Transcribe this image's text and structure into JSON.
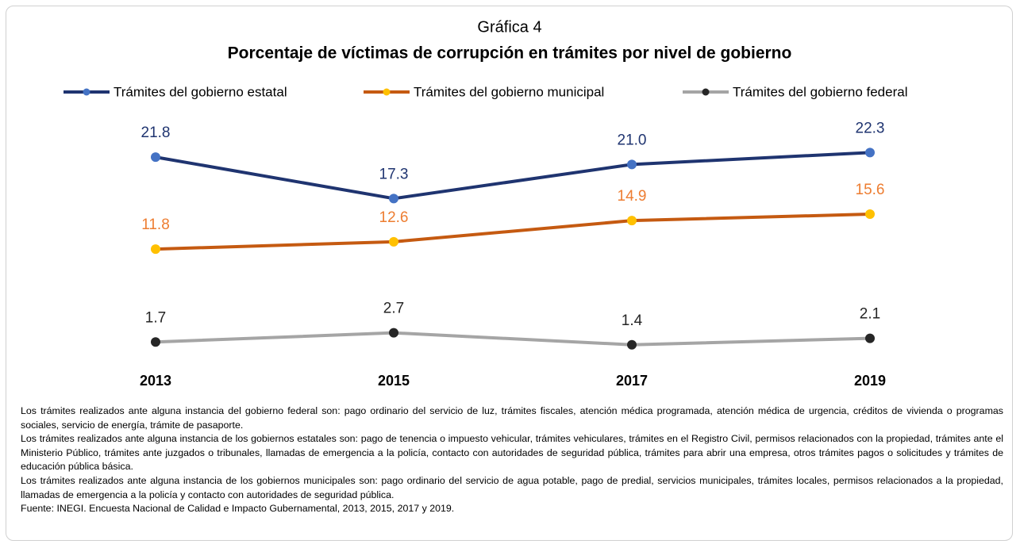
{
  "chart_data": {
    "type": "line",
    "label": "Gráfica 4",
    "title": "Porcentaje de víctimas de corrupción en trámites por nivel de gobierno",
    "categories": [
      "2013",
      "2015",
      "2017",
      "2019"
    ],
    "series": [
      {
        "name": "Trámites del gobierno estatal",
        "color": "#1f3470",
        "marker_color": "#4472c4",
        "label_color": "#1f3470",
        "values": [
          21.8,
          17.3,
          21.0,
          22.3
        ],
        "value_labels": [
          "21.8",
          "17.3",
          "21.0",
          "22.3"
        ]
      },
      {
        "name": "Trámites del gobierno municipal",
        "color": "#c55a11",
        "marker_color": "#ffc000",
        "label_color": "#ed7d31",
        "values": [
          11.8,
          12.6,
          14.9,
          15.6
        ],
        "value_labels": [
          "11.8",
          "12.6",
          "14.9",
          "15.6"
        ]
      },
      {
        "name": "Trámites del gobierno federal",
        "color": "#a5a5a5",
        "marker_color": "#262626",
        "label_color": "#262626",
        "values": [
          1.7,
          2.7,
          1.4,
          2.1
        ],
        "value_labels": [
          "1.7",
          "2.7",
          "1.4",
          "2.1"
        ]
      }
    ],
    "ylim": [
      0,
      25
    ],
    "legend": "top",
    "notes": [
      "Los trámites realizados ante alguna instancia del gobierno federal son: pago ordinario del servicio de luz, trámites fiscales, atención médica programada, atención médica de urgencia, créditos de vivienda o programas sociales, servicio de energía, trámite de pasaporte.",
      "Los trámites realizados ante alguna instancia de los gobiernos estatales son: pago de tenencia o impuesto vehicular, trámites vehiculares, trámites en el Registro Civil, permisos relacionados con la propiedad, trámites ante el Ministerio Público, trámites ante juzgados o tribunales, llamadas de emergencia a la policía, contacto con autoridades de seguridad pública, trámites para abrir una empresa, otros trámites pagos o solicitudes y trámites de educación pública básica.",
      "Los trámites realizados ante alguna instancia de los gobiernos municipales son: pago ordinario del servicio de agua potable, pago de predial, servicios municipales, trámites locales, permisos relacionados a la propiedad, llamadas de emergencia a la policía y contacto con autoridades de seguridad pública.",
      "Fuente: INEGI. Encuesta Nacional de Calidad e Impacto Gubernamental, 2013, 2015, 2017 y 2019."
    ]
  }
}
